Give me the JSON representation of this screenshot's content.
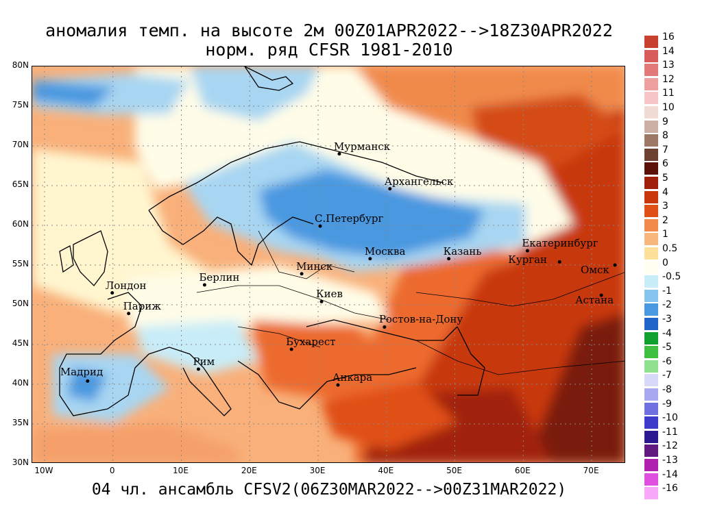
{
  "title": {
    "line1": "аномалия темп. на высоте 2м 00Z01APR2022-->18Z30APR2022",
    "line2": "норм. ряд CFSR 1981-2010"
  },
  "footer": "04 чл. ансамбль CFSV2(06Z30MAR2022-->00Z31MAR2022)",
  "axes": {
    "lat_labels": [
      "80N",
      "75N",
      "70N",
      "65N",
      "60N",
      "55N",
      "50N",
      "45N",
      "40N",
      "35N",
      "30N"
    ],
    "lon_labels": [
      "10W",
      "0",
      "10E",
      "20E",
      "30E",
      "40E",
      "50E",
      "60E",
      "70E"
    ]
  },
  "cities": [
    {
      "name": "Мурманск",
      "lon": 33.1,
      "lat": 69.0
    },
    {
      "name": "Архангельск",
      "lon": 40.5,
      "lat": 64.6
    },
    {
      "name": "С.Петербург",
      "lon": 30.3,
      "lat": 59.9
    },
    {
      "name": "Москва",
      "lon": 37.6,
      "lat": 55.8
    },
    {
      "name": "Казань",
      "lon": 49.1,
      "lat": 55.8
    },
    {
      "name": "Екатеринбург",
      "lon": 60.6,
      "lat": 56.8
    },
    {
      "name": "Курган",
      "lon": 65.3,
      "lat": 55.4
    },
    {
      "name": "Омск",
      "lon": 73.4,
      "lat": 55.0
    },
    {
      "name": "Астана",
      "lon": 71.4,
      "lat": 51.2
    },
    {
      "name": "Минск",
      "lon": 27.6,
      "lat": 53.9
    },
    {
      "name": "Берлин",
      "lon": 13.4,
      "lat": 52.5
    },
    {
      "name": "Лондон",
      "lon": -0.1,
      "lat": 51.5
    },
    {
      "name": "Париж",
      "lon": 2.3,
      "lat": 48.9
    },
    {
      "name": "Киев",
      "lon": 30.5,
      "lat": 50.4
    },
    {
      "name": "Ростов-на-Дону",
      "lon": 39.7,
      "lat": 47.2
    },
    {
      "name": "Бухарест",
      "lon": 26.1,
      "lat": 44.4
    },
    {
      "name": "Рим",
      "lon": 12.5,
      "lat": 41.9
    },
    {
      "name": "Мадрид",
      "lon": -3.7,
      "lat": 40.4
    },
    {
      "name": "Анкара",
      "lon": 32.9,
      "lat": 39.9
    }
  ],
  "legend": {
    "labels": [
      "16",
      "14",
      "13",
      "12",
      "11",
      "10",
      "9",
      "8",
      "7",
      "6",
      "5",
      "4",
      "3",
      "2",
      "1",
      "0.5",
      "0",
      "-0.5",
      "-1",
      "-2",
      "-3",
      "-4",
      "-5",
      "-6",
      "-7",
      "-8",
      "-9",
      "-10",
      "-11",
      "-12",
      "-13",
      "-14",
      "-16"
    ],
    "colors": [
      "#c8402e",
      "#d95c5c",
      "#e37a7a",
      "#eea0a0",
      "#f6c6c6",
      "#f0dcd4",
      "#cdb0a4",
      "#9c7866",
      "#6e4232",
      "#5a1208",
      "#a0200c",
      "#c8380c",
      "#e05016",
      "#f28a4c",
      "#f8b87c",
      "#fde09a",
      "#fffff0",
      "#c8ecf8",
      "#86c6ee",
      "#4a98e0",
      "#2064c8",
      "#10a030",
      "#40c040",
      "#90e090",
      "#d8d8f8",
      "#a8a8f0",
      "#7070e0",
      "#3c3cc8",
      "#2c1890",
      "#601a80",
      "#b020b0",
      "#e050e0",
      "#f8a8f8"
    ]
  },
  "colors": {
    "warm_strong": "#b83008",
    "warm_mid": "#ec6a2e",
    "warm_light": "#f9b07a",
    "neutral": "#fffde8",
    "cool_light": "#a8d6f2",
    "cool_mid": "#4a98e0",
    "cool_strong": "#2064c8"
  }
}
